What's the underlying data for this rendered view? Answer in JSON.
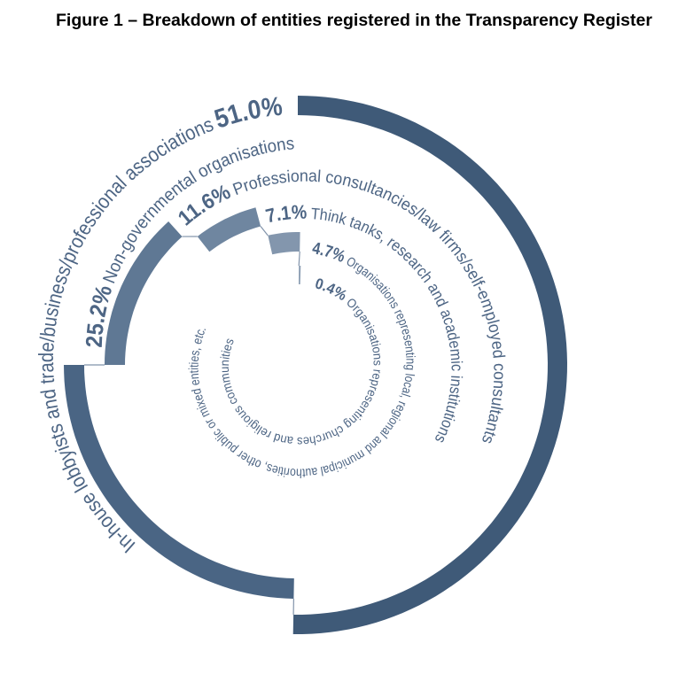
{
  "title": "Figure 1 – Breakdown of entities registered in the Transparency Register",
  "chart_data": {
    "type": "bar",
    "layout": "radial spiral",
    "title": "Figure 1 – Breakdown of entities registered in the Transparency Register",
    "categories": [
      "In-house lobbyists and trade/business/professional associations",
      "Non-governmental organisations",
      "Professional consultancies/law firms/self-employed consultants",
      "Think tanks, research and academic institutions",
      "Organisations representing local, regional and municipal authorities, other public or mixed entities, etc.",
      "Organisations representing churches and religious communities"
    ],
    "values": [
      51.0,
      25.2,
      11.6,
      7.1,
      4.7,
      0.4
    ],
    "value_labels": [
      "51.0%",
      "25.2%",
      "11.6%",
      "7.1%",
      "4.7%",
      "0.4%"
    ],
    "unit": "%",
    "colors": [
      "#3f5a78",
      "#4a6584",
      "#5f7894",
      "#6f86a0",
      "#8396ad",
      "#8d9fb4"
    ],
    "text_color": "#4d6584",
    "legend": "none",
    "grid": false
  }
}
